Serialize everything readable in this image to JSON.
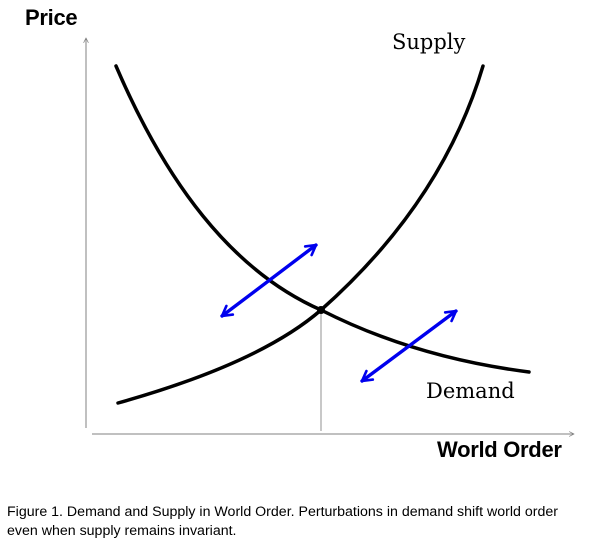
{
  "diagram": {
    "y_axis_title": "Price",
    "x_axis_title": "World Order",
    "supply_label": "Supply",
    "demand_label": "Demand",
    "colors": {
      "curves": "#000000",
      "axes": "#808080",
      "arrows": "#0000ee"
    }
  },
  "caption": "Figure 1.  Demand and Supply in World Order.  Perturbations in demand shift world order even when supply remains invariant."
}
